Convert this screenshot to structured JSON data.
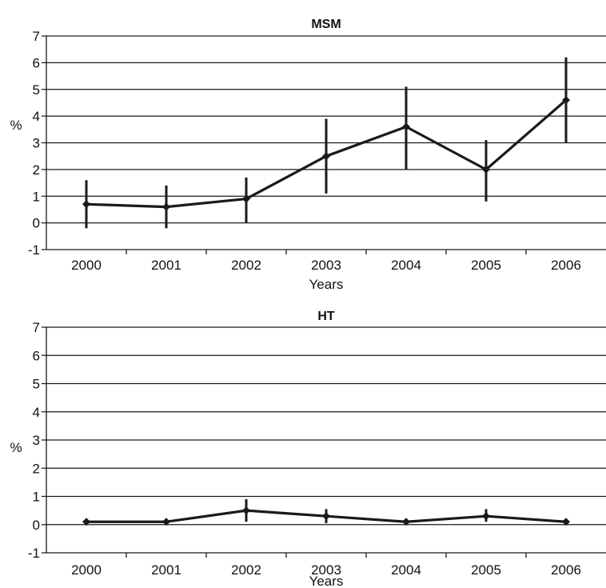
{
  "chart_data": [
    {
      "type": "line",
      "title": "MSM",
      "xlabel": "Years",
      "ylabel": "%",
      "ylim": [
        -1,
        7
      ],
      "yticks": [
        "7",
        "6",
        "5",
        "4",
        "3",
        "2",
        "1",
        "0",
        "-1"
      ],
      "categories": [
        "2000",
        "2001",
        "2002",
        "2003",
        "2004",
        "2005",
        "2006"
      ],
      "grid": true,
      "series": [
        {
          "values": [
            0.7,
            0.6,
            0.9,
            2.5,
            3.6,
            2.0,
            4.6
          ],
          "error_low": [
            -0.2,
            -0.2,
            0.0,
            1.1,
            2.0,
            0.8,
            3.0
          ],
          "error_high": [
            1.6,
            1.4,
            1.7,
            3.9,
            5.1,
            3.1,
            6.2
          ]
        }
      ],
      "colors": {
        "line": "#1a1a1a",
        "grid": "#1a1a1a"
      }
    },
    {
      "type": "line",
      "title": "HT",
      "xlabel": "Years",
      "ylabel": "%",
      "ylim": [
        -1,
        7
      ],
      "yticks": [
        "7",
        "6",
        "5",
        "4",
        "3",
        "2",
        "1",
        "0",
        "-1"
      ],
      "categories": [
        "2000",
        "2001",
        "2002",
        "2003",
        "2004",
        "2005",
        "2006"
      ],
      "grid": true,
      "series": [
        {
          "values": [
            0.1,
            0.1,
            0.5,
            0.3,
            0.1,
            0.3,
            0.1
          ],
          "error_low": [
            0.0,
            0.0,
            0.1,
            0.05,
            0.0,
            0.1,
            0.0
          ],
          "error_high": [
            0.2,
            0.2,
            0.9,
            0.55,
            0.2,
            0.55,
            0.2
          ]
        }
      ],
      "colors": {
        "line": "#1a1a1a",
        "grid": "#1a1a1a"
      }
    }
  ]
}
